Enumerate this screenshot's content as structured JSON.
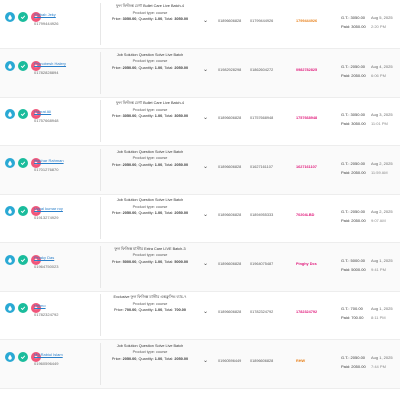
{
  "orders": [
    {
      "customer_name": "Shihab Jeky",
      "customer_phone": "01799444926",
      "product_title": "ফুল ফিজিক্স মেগা Bullet Care Live Batch-4",
      "product_type_label": "Product type:",
      "product_type": "course",
      "price_label": "Price:",
      "price": "3050.00",
      "qty_label": "Quantity:",
      "qty": "1.00",
      "total_label": "Total:",
      "total": "3050.00",
      "code1": "01896606828",
      "code2": "01799444926",
      "txn": "1799444926",
      "txn_color": "orange",
      "gt": "G.T.: 3050.00",
      "paid": "Paid: 3050.00",
      "date": "Aug 5, 2025",
      "time": "2:20 PM"
    },
    {
      "customer_name": "Pronobesh Halery",
      "customer_phone": "01782828894",
      "product_title": "Job Solution Question Solve Live Batch",
      "product_type_label": "Product type:",
      "product_type": "course",
      "price_label": "Price:",
      "price": "2050.00",
      "qty_label": "Quantity:",
      "qty": "1.00",
      "total_label": "Total:",
      "total": "2050.00",
      "code1": "01982928298",
      "code2": "01862604272",
      "txn": "0982782825",
      "txn_color": "pink",
      "gt": "G.T.: 2050.00",
      "paid": "Paid: 2050.00",
      "date": "Aug 4, 2025",
      "time": "6:06 PM"
    },
    {
      "customer_name": "Hazrat Ali",
      "customer_phone": "01757668948",
      "product_title": "ফুল ফিজিক্স মেগা Bullet Care Live Batch-4",
      "product_type_label": "Product type:",
      "product_type": "course",
      "price_label": "Price:",
      "price": "3050.00",
      "qty_label": "Quantity:",
      "qty": "1.00",
      "total_label": "Total:",
      "total": "3050.00",
      "code1": "01896606828",
      "code2": "01757668948",
      "txn": "1757668948",
      "txn_color": "pink",
      "gt": "G.T.: 3050.00",
      "paid": "Paid: 3050.00",
      "date": "Aug 3, 2025",
      "time": "11:01 PM"
    },
    {
      "customer_name": "Iftekhar Rahman",
      "customer_phone": "01701276870",
      "product_title": "Job Solution Question Solve Live Batch",
      "product_type_label": "Product type:",
      "product_type": "course",
      "price_label": "Price:",
      "price": "2050.00",
      "qty_label": "Quantity:",
      "qty": "1.00",
      "total_label": "Total:",
      "total": "2050.00",
      "code1": "01896606828",
      "code2": "01627161107",
      "txn": "1627161107",
      "txn_color": "pink",
      "gt": "G.T.: 2050.00",
      "paid": "Paid: 2050.00",
      "date": "Aug 2, 2025",
      "time": "11:59 AM"
    },
    {
      "customer_name": "Uzzal kumar roy",
      "customer_phone": "01913274929",
      "product_title": "Job Solution Question Solve Live Batch",
      "product_type_label": "Product type:",
      "product_type": "course",
      "price_label": "Price:",
      "price": "2050.00",
      "qty_label": "Quantity:",
      "qty": "1.00",
      "total_label": "Total:",
      "total": "2050.00",
      "code1": "01896606828",
      "code2": "01894955333",
      "txn": "70204LBD",
      "txn_color": "pink",
      "gt": "G.T.: 2050.00",
      "paid": "Paid: 2050.00",
      "date": "Aug 2, 2025",
      "time": "9:07 AM"
    },
    {
      "customer_name": "Pinaky Das",
      "customer_phone": "01964750023",
      "product_title": "ফুল ফিজিক্স মাস্টার Extra Care LIVE Batch-3",
      "product_type_label": "Product type:",
      "product_type": "course",
      "price_label": "Price:",
      "price": "5000.00",
      "qty_label": "Quantity:",
      "qty": "1.00",
      "total_label": "Total:",
      "total": "5000.00",
      "code1": "01896606828",
      "code2": "01964075487",
      "txn": "Pinghy Dcs",
      "txn_color": "pink",
      "gt": "G.T.: 5000.00",
      "paid": "Paid: 5000.00",
      "date": "Aug 1, 2025",
      "time": "9:41 PM"
    },
    {
      "customer_name": "Helmo",
      "customer_phone": "01782324792",
      "product_title": "Exclusive ফুল ফিজিক্স মাস্টার এক্সক্লুসিভ ব্যাচ-৭",
      "product_type_label": "Product type:",
      "product_type": "course",
      "price_label": "Price:",
      "price": "700.00",
      "qty_label": "Quantity:",
      "qty": "1.00",
      "total_label": "Total:",
      "total": "700.00",
      "code1": "01896606828",
      "code2": "01782324792",
      "txn": "1782324792",
      "txn_color": "pink",
      "gt": "G.T.: 700.00",
      "paid": "Paid: 700.00",
      "date": "Aug 1, 2025",
      "time": "8:11 PM"
    },
    {
      "customer_name": "Md.Rabiul Islam",
      "customer_phone": "01960596449",
      "product_title": "Job Solution Question Solve Live Batch",
      "product_type_label": "Product type:",
      "product_type": "course",
      "price_label": "Price:",
      "price": "2050.00",
      "qty_label": "Quantity:",
      "qty": "1.00",
      "total_label": "Total:",
      "total": "2050.00",
      "code1": "01960596449",
      "code2": "01896606828",
      "txn": "RHW",
      "txn_color": "orange",
      "gt": "G.T.: 2050.00",
      "paid": "Paid: 2050.00",
      "date": "Aug 1, 2025",
      "time": "7:44 PM"
    }
  ]
}
